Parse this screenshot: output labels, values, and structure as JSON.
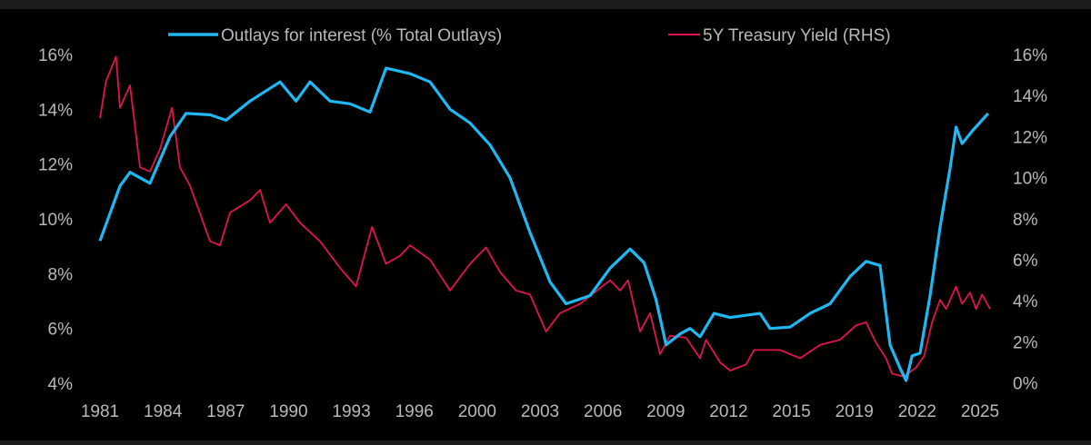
{
  "chart_data": {
    "type": "line",
    "title": "",
    "xlabel": "",
    "ylabel": "",
    "grid": false,
    "legend_position": "top",
    "x_tick_labels": [
      "1981",
      "1984",
      "1987",
      "1990",
      "1993",
      "1996",
      "2000",
      "2003",
      "2006",
      "2009",
      "2012",
      "2015",
      "2019",
      "2022",
      "2025"
    ],
    "y_left": {
      "ticks": [
        "4%",
        "6%",
        "8%",
        "10%",
        "12%",
        "14%",
        "16%"
      ],
      "range": [
        4,
        16
      ]
    },
    "y_right": {
      "ticks": [
        "0%",
        "2%",
        "4%",
        "6%",
        "8%",
        "10%",
        "12%",
        "14%",
        "16%"
      ],
      "range": [
        0,
        16
      ]
    },
    "x_range": [
      1981,
      2025.5
    ],
    "series": [
      {
        "name": "Outlays for interest (% Total Outlays)",
        "axis": "left",
        "color": "#1fb8f2",
        "x": [
          1981.0,
          1982.0,
          1982.5,
          1983.5,
          1984.5,
          1985.3,
          1986.5,
          1987.3,
          1988.5,
          1990.0,
          1990.8,
          1991.5,
          1992.5,
          1993.5,
          1994.5,
          1995.3,
          1996.5,
          1997.5,
          1998.5,
          1999.5,
          2000.5,
          2001.5,
          2002.5,
          2003.5,
          2004.3,
          2005.5,
          2006.5,
          2007.5,
          2008.2,
          2008.8,
          2009.3,
          2010.0,
          2010.5,
          2011.0,
          2011.7,
          2012.5,
          2014.0,
          2014.5,
          2015.5,
          2016.5,
          2017.5,
          2018.5,
          2019.3,
          2020.0,
          2020.5,
          2021.0,
          2021.3,
          2021.6,
          2022.0,
          2022.5,
          2023.0,
          2023.5,
          2023.8,
          2024.1,
          2024.6,
          2025.4
        ],
        "y": [
          9.2,
          11.2,
          11.7,
          11.3,
          13.0,
          13.85,
          13.8,
          13.6,
          14.3,
          15.0,
          14.3,
          15.0,
          14.3,
          14.2,
          13.9,
          15.5,
          15.3,
          15.0,
          14.0,
          13.5,
          12.7,
          11.5,
          9.5,
          7.7,
          6.9,
          7.2,
          8.2,
          8.9,
          8.4,
          7.05,
          5.4,
          5.8,
          6.0,
          5.7,
          6.55,
          6.4,
          6.55,
          6.0,
          6.05,
          6.55,
          6.9,
          7.9,
          8.45,
          8.3,
          5.4,
          4.55,
          4.1,
          5.0,
          5.1,
          7.2,
          9.7,
          11.85,
          13.35,
          12.75,
          13.2,
          13.85
        ]
      },
      {
        "name": "5Y Treasury Yield (RHS)",
        "axis": "right",
        "color": "#e3134b",
        "x": [
          1981.0,
          1981.3,
          1981.8,
          1982.0,
          1982.5,
          1983.0,
          1983.5,
          1984.0,
          1984.6,
          1985.0,
          1985.5,
          1986.5,
          1987.0,
          1987.5,
          1988.5,
          1989.0,
          1989.5,
          1990.3,
          1991.0,
          1992.0,
          1993.0,
          1993.8,
          1994.6,
          1995.3,
          1996.0,
          1996.5,
          1997.5,
          1998.5,
          1999.5,
          2000.3,
          2001.0,
          2001.8,
          2002.5,
          2003.3,
          2004.0,
          2005.0,
          2006.5,
          2007.0,
          2007.4,
          2008.0,
          2008.5,
          2009.0,
          2009.5,
          2010.3,
          2011.0,
          2011.3,
          2012.0,
          2012.5,
          2013.3,
          2013.7,
          2015.0,
          2016.0,
          2017.0,
          2018.0,
          2018.8,
          2019.3,
          2019.8,
          2020.3,
          2020.6,
          2021.2,
          2021.8,
          2022.2,
          2022.6,
          2023.0,
          2023.3,
          2023.8,
          2024.1,
          2024.5,
          2024.8,
          2025.1,
          2025.5
        ],
        "y": [
          12.9,
          14.7,
          15.9,
          13.4,
          14.5,
          10.5,
          10.3,
          11.4,
          13.4,
          10.5,
          9.6,
          6.9,
          6.7,
          8.3,
          8.9,
          9.4,
          7.8,
          8.7,
          7.8,
          6.9,
          5.6,
          4.7,
          7.6,
          5.8,
          6.2,
          6.7,
          6.0,
          4.5,
          5.8,
          6.6,
          5.4,
          4.5,
          4.3,
          2.5,
          3.4,
          3.85,
          5.0,
          4.5,
          5.0,
          2.5,
          3.4,
          1.4,
          2.3,
          2.2,
          1.2,
          2.1,
          1.0,
          0.6,
          0.9,
          1.6,
          1.6,
          1.2,
          1.85,
          2.1,
          2.8,
          2.95,
          1.95,
          1.2,
          0.45,
          0.3,
          0.75,
          1.3,
          2.95,
          4.05,
          3.6,
          4.7,
          3.85,
          4.4,
          3.6,
          4.3,
          3.6
        ]
      }
    ]
  }
}
